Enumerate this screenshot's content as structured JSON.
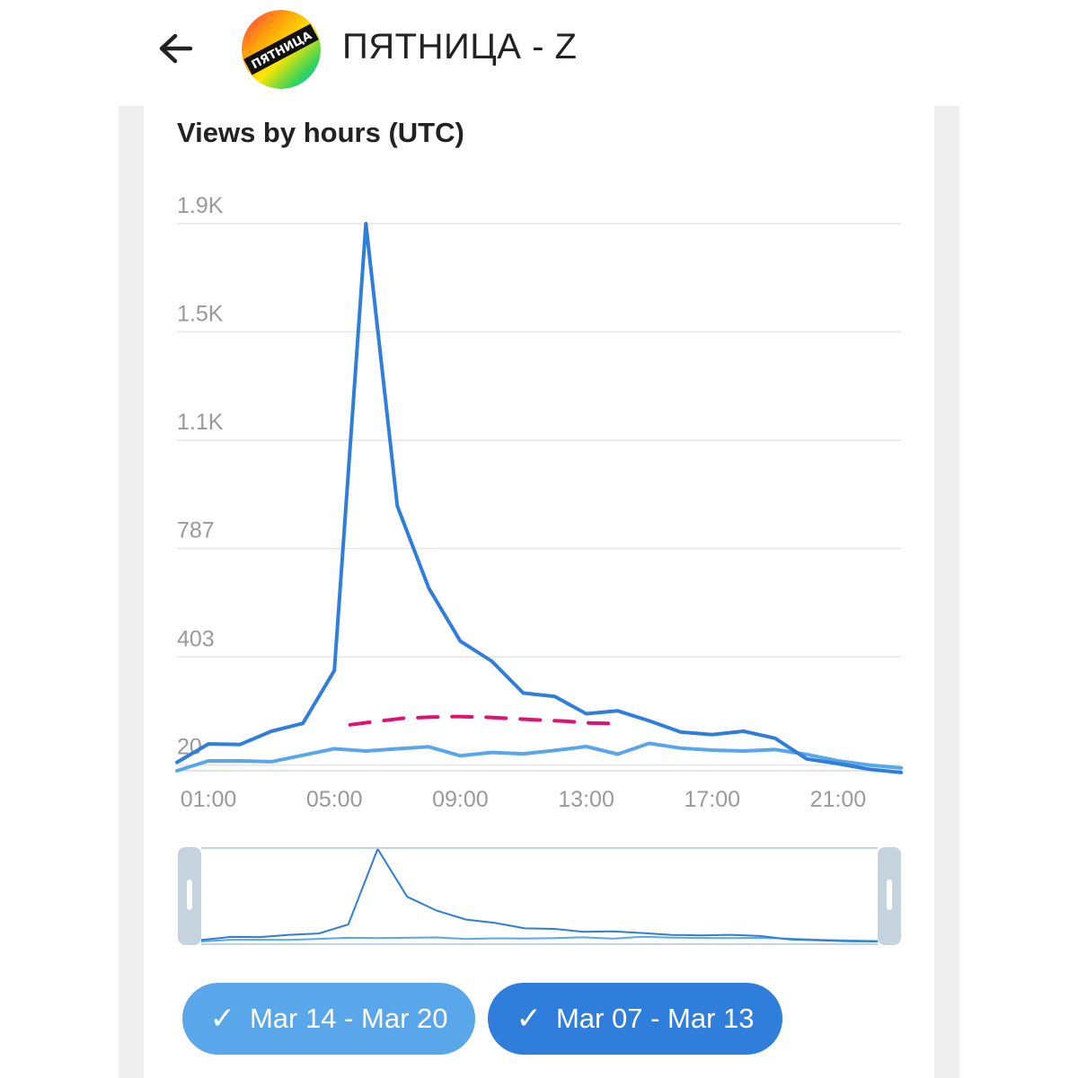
{
  "header": {
    "title": "ПЯТНИЦА - Z",
    "avatar_text": "ПЯТНИЦА"
  },
  "chart_data": {
    "type": "line",
    "title": "Views by hours (UTC)",
    "xlabel": "",
    "ylabel": "",
    "x": [
      "00:00",
      "01:00",
      "02:00",
      "03:00",
      "04:00",
      "05:00",
      "06:00",
      "07:00",
      "08:00",
      "09:00",
      "10:00",
      "11:00",
      "12:00",
      "13:00",
      "14:00",
      "15:00",
      "16:00",
      "17:00",
      "18:00",
      "19:00",
      "20:00",
      "21:00",
      "22:00",
      "23:00"
    ],
    "x_tick_labels": [
      "01:00",
      "05:00",
      "09:00",
      "13:00",
      "17:00",
      "21:00"
    ],
    "y_tick_labels": [
      "20",
      "403",
      "787",
      "1.1K",
      "1.5K",
      "1.9K"
    ],
    "y_ticks": [
      20,
      403,
      787,
      1170,
      1554,
      1937
    ],
    "ylim": [
      0,
      1937
    ],
    "series": [
      {
        "name": "Mar 07 - Mar 13",
        "color": "#2f7edb",
        "values": [
          30,
          95,
          93,
          140,
          168,
          355,
          1937,
          937,
          647,
          459,
          388,
          275,
          263,
          202,
          212,
          177,
          137,
          128,
          140,
          115,
          42,
          25,
          5,
          -6
        ]
      },
      {
        "name": "Mar 14 - Mar 20",
        "color": "#5aa6ea",
        "values": [
          0,
          35,
          35,
          32,
          55,
          78,
          70,
          78,
          85,
          53,
          65,
          60,
          72,
          86,
          59,
          97,
          80,
          73,
          70,
          75,
          58,
          35,
          20,
          10
        ]
      }
    ],
    "annotation": {
      "type": "dashed-line",
      "color": "#e0116f",
      "from_x": "05:30",
      "to_x": "14:00",
      "values": [
        163,
        175,
        186,
        190,
        192,
        190,
        185,
        180,
        176,
        169,
        167
      ]
    },
    "grid": true,
    "legend": [
      "Mar 14 - Mar 20",
      "Mar 07 - Mar 13"
    ]
  },
  "legend": {
    "a_label": "Mar 14 - Mar 20",
    "b_label": "Mar 07 - Mar 13",
    "check_glyph": "✓"
  }
}
